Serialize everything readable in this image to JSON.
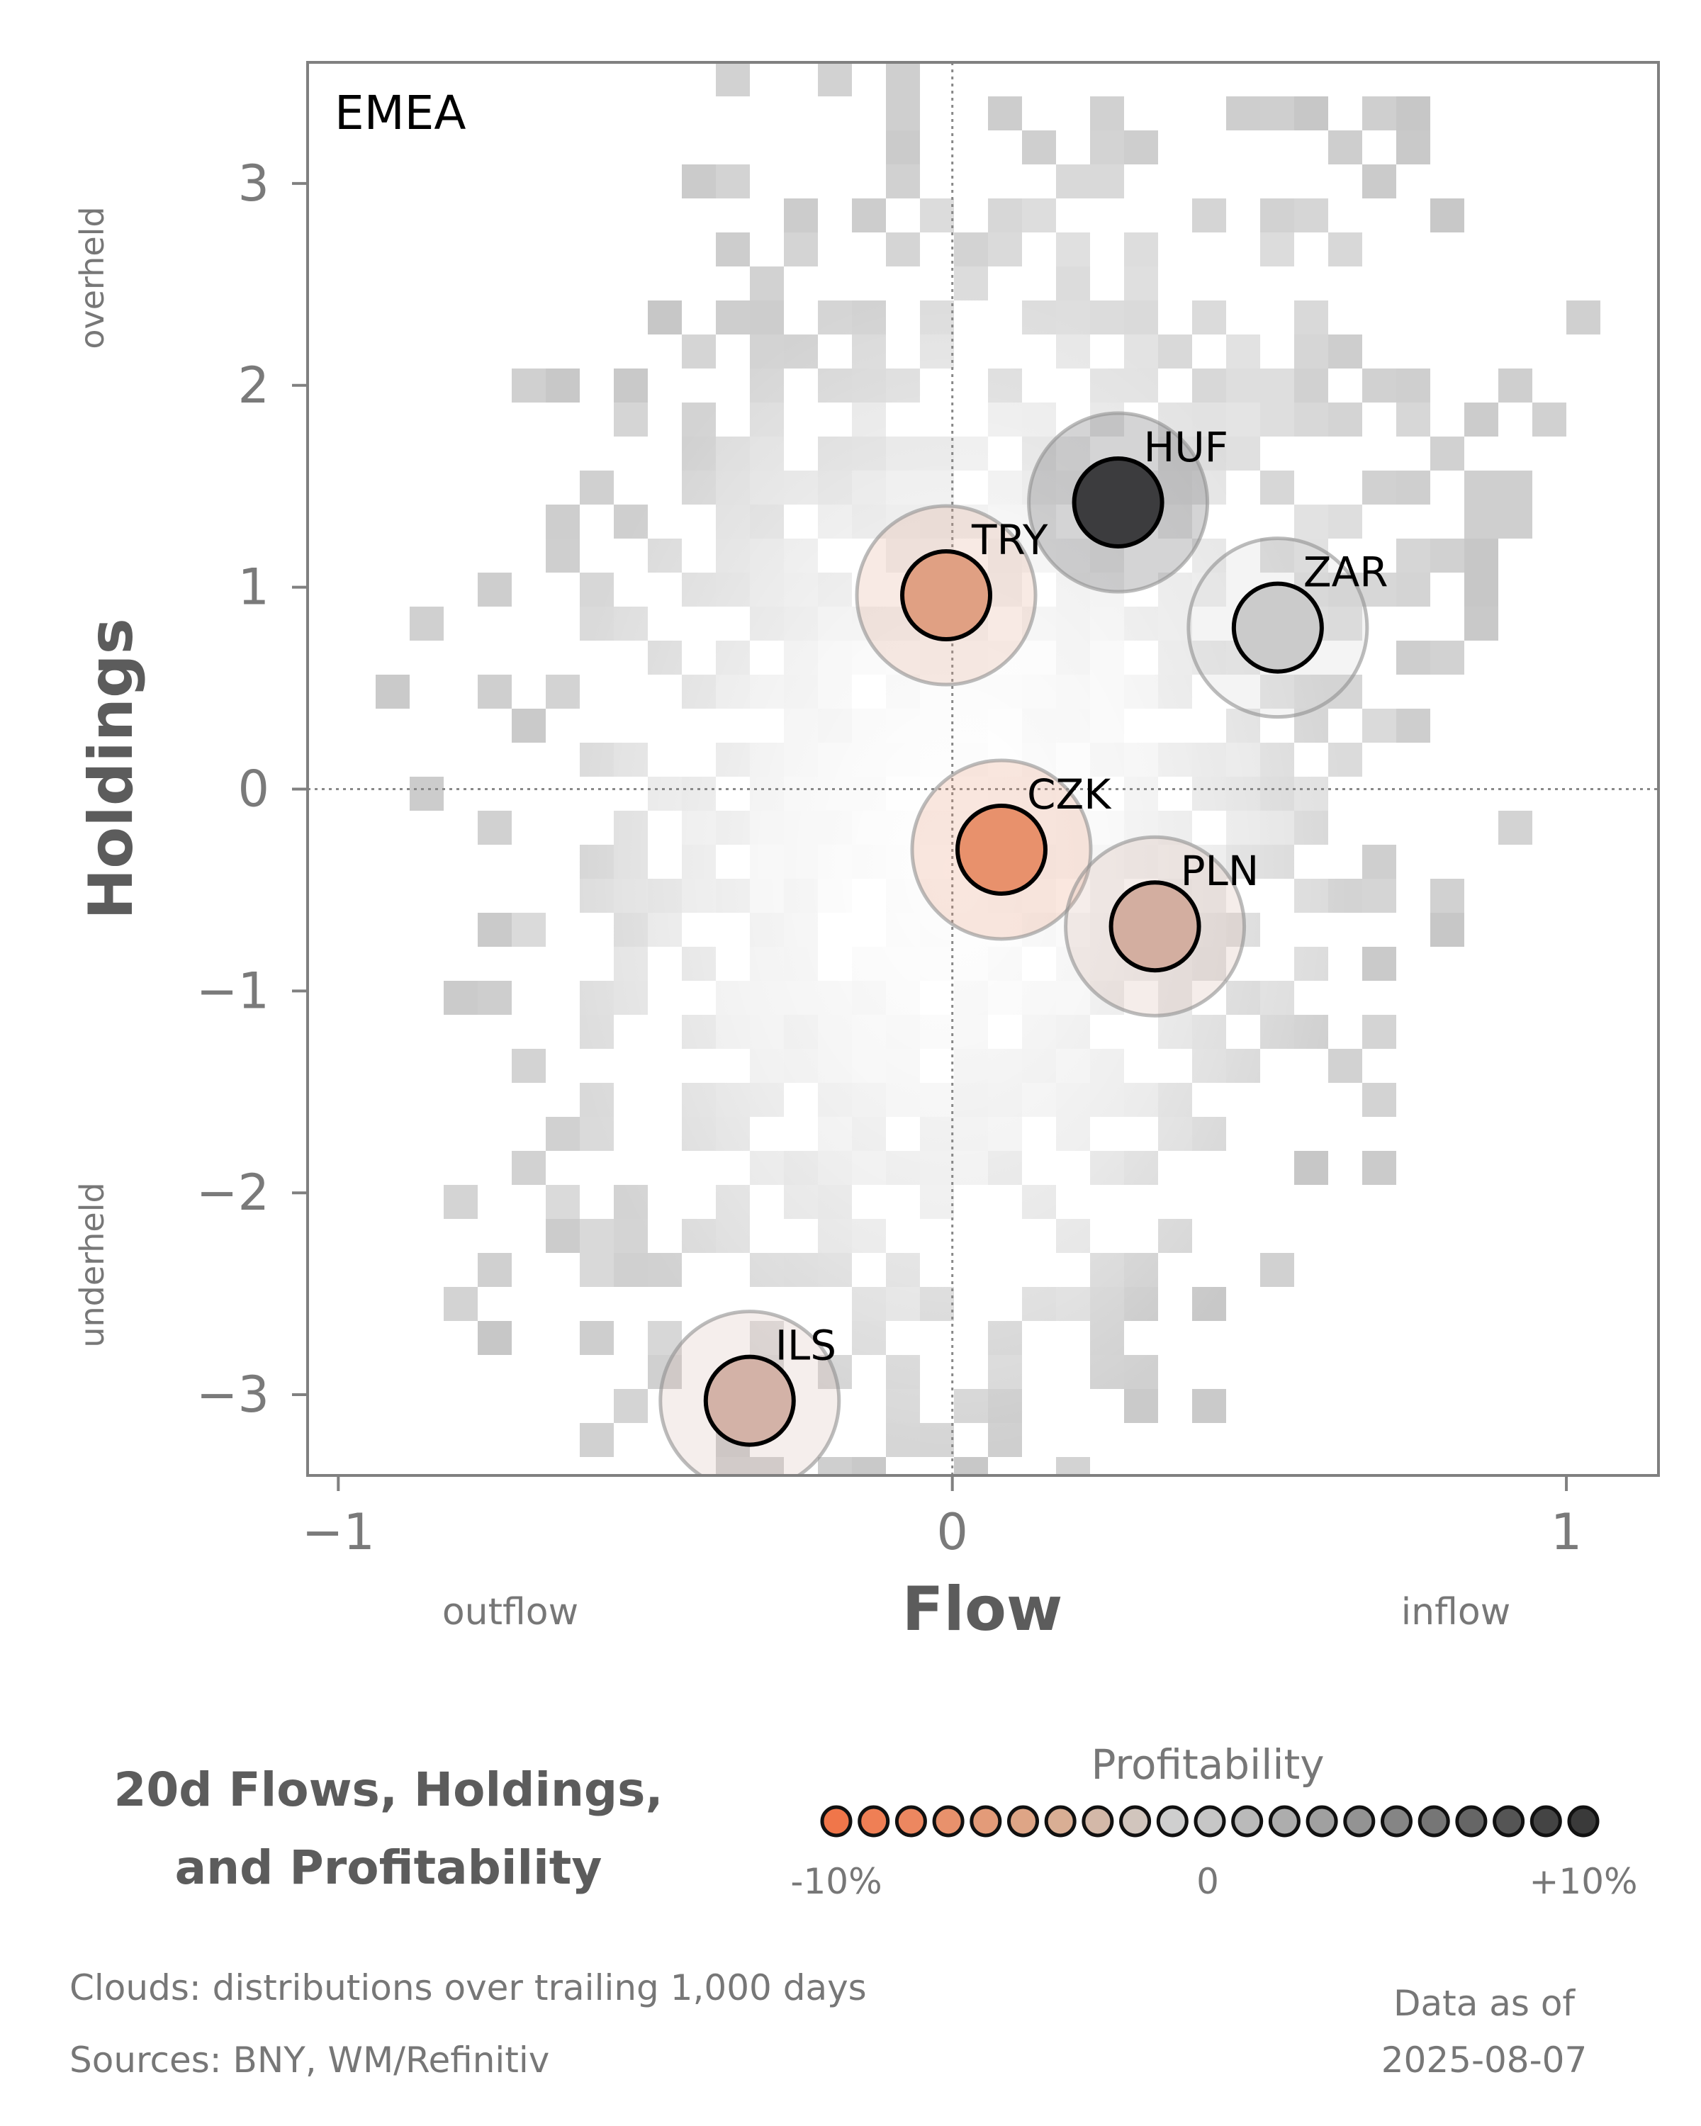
{
  "chart_data": {
    "type": "scatter",
    "panel_label": "EMEA",
    "xlabel": "Flow",
    "ylabel": "Holdings",
    "xlim": [
      -1.05,
      1.15
    ],
    "ylim": [
      -3.4,
      3.6
    ],
    "x_ticks": [
      {
        "value": -1,
        "label": "−1"
      },
      {
        "value": 0,
        "label": "0"
      },
      {
        "value": 1,
        "label": "1"
      }
    ],
    "y_ticks": [
      {
        "value": 3,
        "label": "3"
      },
      {
        "value": 2,
        "label": "2"
      },
      {
        "value": 1,
        "label": "1"
      },
      {
        "value": 0,
        "label": "0"
      },
      {
        "value": -1,
        "label": "−1"
      },
      {
        "value": -2,
        "label": "−2"
      },
      {
        "value": -3,
        "label": "−3"
      }
    ],
    "x_direction_labels": {
      "negative": "outflow",
      "positive": "inflow"
    },
    "y_direction_labels": {
      "positive": "overheld",
      "negative": "underheld"
    },
    "reference_lines": {
      "x": 0,
      "y": 0
    },
    "grid": false,
    "points": [
      {
        "label": "HUF",
        "flow": 0.27,
        "holdings": 1.42,
        "color": "#3c3c3e"
      },
      {
        "label": "TRY",
        "flow": -0.01,
        "holdings": 0.96,
        "color": "#e0a083"
      },
      {
        "label": "ZAR",
        "flow": 0.53,
        "holdings": 0.8,
        "color": "#cbcbcb"
      },
      {
        "label": "CZK",
        "flow": 0.08,
        "holdings": -0.3,
        "color": "#e8916c"
      },
      {
        "label": "PLN",
        "flow": 0.33,
        "holdings": -0.68,
        "color": "#d3aea0"
      },
      {
        "label": "ILS",
        "flow": -0.33,
        "holdings": -3.03,
        "color": "#d3b2a7"
      }
    ],
    "background": "2D density cloud of historical flow/holdings observations (grey)",
    "title": "20d Flows, Holdings, and Profitability",
    "colorbar": {
      "label": "Profitability",
      "tick_labels": [
        "-10%",
        "0",
        "+10%"
      ],
      "range": [
        -10,
        10
      ],
      "colors": [
        "#f0764a",
        "#ef7f55",
        "#ec8760",
        "#e8916c",
        "#e39b79",
        "#dea586",
        "#d9ae94",
        "#d3b8a8",
        "#d1c5bd",
        "#cfcfcf",
        "#c6c6c6",
        "#bababa",
        "#adadad",
        "#a0a0a0",
        "#939393",
        "#858585",
        "#767676",
        "#666666",
        "#555555",
        "#444444",
        "#3a3a3a"
      ]
    }
  },
  "footer": {
    "title_line1": "20d Flows, Holdings,",
    "title_line2": "and Profitability",
    "clouds_note": "Clouds:  distributions over trailing 1,000 days",
    "sources_note": "Sources:  BNY, WM/Refinitiv",
    "data_as_of_label": "Data as of",
    "data_as_of_date": "2025-08-07"
  },
  "colors": {
    "axis": "#808080",
    "tick_text": "#7a7a7a",
    "axis_title": "#5c5c5c",
    "footer_text": "#777777",
    "cloud": "#c8c8c8"
  }
}
